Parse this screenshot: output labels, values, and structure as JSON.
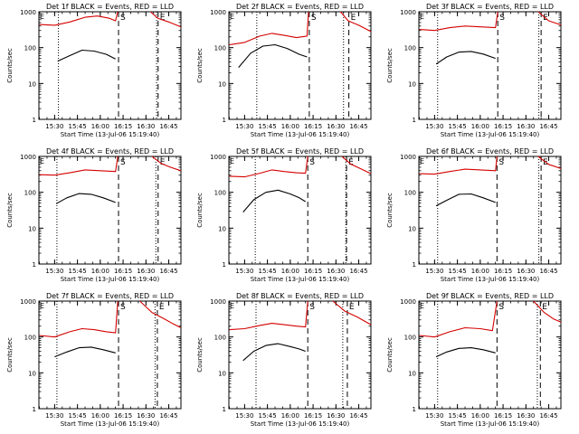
{
  "figure": {
    "xlabel": "Start Time (13-Jul-06 15:19:40)",
    "ylabel": "Counts/sec",
    "x_tick_labels": [
      "15:30",
      "15:45",
      "16:00",
      "16:15",
      "16:30",
      "16:45"
    ],
    "y_tick_labels": [
      "1",
      "10",
      "100",
      "1000"
    ],
    "marker_S": "S",
    "marker_E": "E",
    "colors": {
      "events": "#000000",
      "lld": "#d40000",
      "axes": "#000000"
    }
  },
  "chart_data": [
    {
      "type": "line",
      "title": "Det 1f BLACK = Events, RED = LLD",
      "x_unit": "time",
      "xlim": [
        "15:19:40",
        "16:53:00"
      ],
      "ylim": [
        1,
        1000
      ],
      "y_scale": "log",
      "grid": false,
      "vlines": {
        "dotted": [
          "15:32:30",
          "16:37:00"
        ],
        "dashed": [
          "16:12:00",
          "16:38:00"
        ]
      },
      "series": [
        {
          "name": "Events",
          "x": [
            "15:32:00",
            "15:40:00",
            "15:48:00",
            "15:56:00",
            "16:04:00",
            "16:10:00"
          ],
          "values": [
            42,
            60,
            85,
            80,
            65,
            48
          ]
        },
        {
          "name": "LLD",
          "x": [
            "15:20:00",
            "15:30:00",
            "15:40:00",
            "15:50:00",
            "15:58:00",
            "16:06:00",
            "16:10:00",
            "16:11:30"
          ],
          "values": [
            440,
            420,
            520,
            700,
            760,
            660,
            560,
            1000
          ]
        },
        {
          "name": "LLD",
          "x": [
            "16:33:00",
            "16:38:00",
            "16:45:00",
            "16:53:00"
          ],
          "values": [
            1000,
            650,
            520,
            380
          ]
        }
      ]
    },
    {
      "type": "line",
      "title": "Det 2f BLACK = Events, RED = LLD",
      "x_unit": "time",
      "xlim": [
        "15:19:40",
        "16:53:00"
      ],
      "ylim": [
        1,
        1000
      ],
      "y_scale": "log",
      "grid": false,
      "vlines": {
        "dotted": [
          "15:38:00",
          "16:35:00"
        ],
        "dashed": [
          "16:12:30",
          "16:38:30"
        ]
      },
      "series": [
        {
          "name": "Events",
          "x": [
            "15:26:00",
            "15:34:00",
            "15:42:00",
            "15:50:00",
            "15:58:00",
            "16:06:00",
            "16:11:00"
          ],
          "values": [
            28,
            70,
            110,
            120,
            95,
            65,
            55
          ]
        },
        {
          "name": "LLD",
          "x": [
            "15:20:00",
            "15:30:00",
            "15:40:00",
            "15:48:00",
            "15:56:00",
            "16:04:00",
            "16:11:00",
            "16:12:00"
          ],
          "values": [
            120,
            140,
            210,
            250,
            220,
            190,
            210,
            1000
          ]
        },
        {
          "name": "LLD",
          "x": [
            "16:33:00",
            "16:38:00",
            "16:45:00",
            "16:53:00"
          ],
          "values": [
            1000,
            560,
            420,
            280
          ]
        }
      ]
    },
    {
      "type": "line",
      "title": "Det 3f BLACK = Events, RED = LLD",
      "x_unit": "time",
      "xlim": [
        "15:19:40",
        "16:53:00"
      ],
      "ylim": [
        1,
        1000
      ],
      "y_scale": "log",
      "grid": false,
      "vlines": {
        "dotted": [
          "15:32:00",
          "16:38:30"
        ],
        "dashed": [
          "16:11:30",
          "16:40:00"
        ]
      },
      "series": [
        {
          "name": "Events",
          "x": [
            "15:31:00",
            "15:38:00",
            "15:46:00",
            "15:54:00",
            "16:02:00",
            "16:10:00"
          ],
          "values": [
            35,
            55,
            75,
            78,
            66,
            50
          ]
        },
        {
          "name": "LLD",
          "x": [
            "15:20:00",
            "15:30:00",
            "15:40:00",
            "15:50:00",
            "16:00:00",
            "16:10:00",
            "16:11:30"
          ],
          "values": [
            320,
            300,
            360,
            400,
            380,
            360,
            1000
          ]
        },
        {
          "name": "LLD",
          "x": [
            "16:38:00",
            "16:45:00",
            "16:53:00"
          ],
          "values": [
            1000,
            560,
            430
          ]
        }
      ]
    },
    {
      "type": "line",
      "title": "Det 4f BLACK = Events, RED = LLD",
      "x_unit": "time",
      "xlim": [
        "15:19:40",
        "16:53:00"
      ],
      "ylim": [
        1,
        1000
      ],
      "y_scale": "log",
      "grid": false,
      "vlines": {
        "dotted": [
          "15:31:30",
          "16:36:30"
        ],
        "dashed": [
          "16:12:00",
          "16:38:00"
        ]
      },
      "series": [
        {
          "name": "Events",
          "x": [
            "15:31:00",
            "15:38:00",
            "15:46:00",
            "15:54:00",
            "16:02:00",
            "16:10:00"
          ],
          "values": [
            48,
            70,
            92,
            88,
            70,
            52
          ]
        },
        {
          "name": "LLD",
          "x": [
            "15:20:00",
            "15:30:00",
            "15:40:00",
            "15:50:00",
            "16:00:00",
            "16:10:00",
            "16:11:30"
          ],
          "values": [
            310,
            300,
            350,
            420,
            400,
            380,
            1000
          ]
        },
        {
          "name": "LLD",
          "x": [
            "16:34:00",
            "16:40:00",
            "16:46:00",
            "16:53:00"
          ],
          "values": [
            1000,
            640,
            500,
            400
          ]
        }
      ]
    },
    {
      "type": "line",
      "title": "Det 5f BLACK = Events, RED = LLD",
      "x_unit": "time",
      "xlim": [
        "15:19:40",
        "16:53:00"
      ],
      "ylim": [
        1,
        1000
      ],
      "y_scale": "log",
      "grid": false,
      "vlines": {
        "dotted": [
          "15:37:00",
          "16:36:30"
        ],
        "dashed": [
          "16:11:30",
          "16:37:00"
        ]
      },
      "series": [
        {
          "name": "Events",
          "x": [
            "15:29:00",
            "15:36:00",
            "15:44:00",
            "15:52:00",
            "16:00:00",
            "16:06:00",
            "16:10:00"
          ],
          "values": [
            28,
            62,
            100,
            115,
            90,
            70,
            55
          ]
        },
        {
          "name": "LLD",
          "x": [
            "15:20:00",
            "15:30:00",
            "15:40:00",
            "15:48:00",
            "15:56:00",
            "16:04:00",
            "16:10:00",
            "16:11:30"
          ],
          "values": [
            280,
            270,
            340,
            420,
            380,
            350,
            340,
            1000
          ]
        },
        {
          "name": "LLD",
          "x": [
            "16:34:00",
            "16:40:00",
            "16:46:00",
            "16:53:00"
          ],
          "values": [
            1000,
            600,
            460,
            330
          ]
        }
      ]
    },
    {
      "type": "line",
      "title": "Det 6f BLACK = Events, RED = LLD",
      "x_unit": "time",
      "xlim": [
        "15:19:40",
        "16:53:00"
      ],
      "ylim": [
        1,
        1000
      ],
      "y_scale": "log",
      "grid": false,
      "vlines": {
        "dotted": [
          "15:32:00",
          "16:38:30"
        ],
        "dashed": [
          "16:11:00",
          "16:40:00"
        ]
      },
      "series": [
        {
          "name": "Events",
          "x": [
            "15:31:00",
            "15:38:00",
            "15:46:00",
            "15:54:00",
            "16:02:00",
            "16:10:00"
          ],
          "values": [
            42,
            60,
            88,
            90,
            70,
            52
          ]
        },
        {
          "name": "LLD",
          "x": [
            "15:20:00",
            "15:30:00",
            "15:40:00",
            "15:50:00",
            "16:00:00",
            "16:10:00",
            "16:11:00"
          ],
          "values": [
            330,
            320,
            380,
            440,
            420,
            400,
            1000
          ]
        },
        {
          "name": "LLD",
          "x": [
            "16:38:00",
            "16:45:00",
            "16:53:00"
          ],
          "values": [
            1000,
            600,
            460
          ]
        }
      ]
    },
    {
      "type": "line",
      "title": "Det 7f BLACK = Events, RED = LLD",
      "x_unit": "time",
      "xlim": [
        "15:19:40",
        "16:53:00"
      ],
      "ylim": [
        1,
        1000
      ],
      "y_scale": "log",
      "grid": false,
      "vlines": {
        "dotted": [
          "15:31:30",
          "16:36:00"
        ],
        "dashed": [
          "16:12:00",
          "16:37:30"
        ]
      },
      "series": [
        {
          "name": "Events",
          "x": [
            "15:30:00",
            "15:38:00",
            "15:46:00",
            "15:54:00",
            "16:02:00",
            "16:10:00"
          ],
          "values": [
            28,
            38,
            50,
            52,
            44,
            36
          ]
        },
        {
          "name": "LLD",
          "x": [
            "15:20:00",
            "15:30:00",
            "15:40:00",
            "15:48:00",
            "15:56:00",
            "16:04:00",
            "16:10:00",
            "16:11:30"
          ],
          "values": [
            110,
            100,
            140,
            170,
            160,
            140,
            130,
            1000
          ]
        },
        {
          "name": "LLD",
          "x": [
            "16:26:00",
            "16:34:00",
            "16:42:00",
            "16:48:00",
            "16:53:00"
          ],
          "values": [
            1000,
            480,
            320,
            230,
            180
          ]
        }
      ]
    },
    {
      "type": "line",
      "title": "Det 8f BLACK = Events, RED = LLD",
      "x_unit": "time",
      "xlim": [
        "15:19:40",
        "16:53:00"
      ],
      "ylim": [
        1,
        1000
      ],
      "y_scale": "log",
      "grid": false,
      "vlines": {
        "dotted": [
          "15:37:30",
          "16:34:30"
        ],
        "dashed": [
          "16:11:30",
          "16:37:30"
        ]
      },
      "series": [
        {
          "name": "Events",
          "x": [
            "15:29:00",
            "15:36:00",
            "15:44:00",
            "15:52:00",
            "16:00:00",
            "16:06:00",
            "16:10:00"
          ],
          "values": [
            22,
            40,
            58,
            65,
            54,
            46,
            40
          ]
        },
        {
          "name": "LLD",
          "x": [
            "15:20:00",
            "15:30:00",
            "15:40:00",
            "15:48:00",
            "15:56:00",
            "16:04:00",
            "16:10:00",
            "16:11:30"
          ],
          "values": [
            160,
            170,
            210,
            240,
            220,
            200,
            190,
            1000
          ]
        },
        {
          "name": "LLD",
          "x": [
            "16:28:00",
            "16:36:00",
            "16:44:00",
            "16:53:00"
          ],
          "values": [
            1000,
            520,
            360,
            220
          ]
        }
      ]
    },
    {
      "type": "line",
      "title": "Det 9f BLACK = Events, RED = LLD",
      "x_unit": "time",
      "xlim": [
        "15:19:40",
        "16:53:00"
      ],
      "ylim": [
        1,
        1000
      ],
      "y_scale": "log",
      "grid": false,
      "vlines": {
        "dotted": [
          "15:32:00",
          "16:37:30"
        ],
        "dashed": [
          "16:11:00",
          "16:39:30"
        ]
      },
      "series": [
        {
          "name": "Events",
          "x": [
            "15:31:00",
            "15:38:00",
            "15:46:00",
            "15:54:00",
            "16:02:00",
            "16:10:00"
          ],
          "values": [
            28,
            38,
            48,
            50,
            44,
            36
          ]
        },
        {
          "name": "LLD",
          "x": [
            "15:20:00",
            "15:30:00",
            "15:40:00",
            "15:50:00",
            "16:00:00",
            "16:08:00",
            "16:11:00"
          ],
          "values": [
            110,
            100,
            140,
            180,
            170,
            150,
            1000
          ]
        },
        {
          "name": "LLD",
          "x": [
            "16:35:00",
            "16:42:00",
            "16:48:00",
            "16:53:00"
          ],
          "values": [
            1000,
            480,
            320,
            260
          ]
        }
      ]
    }
  ]
}
